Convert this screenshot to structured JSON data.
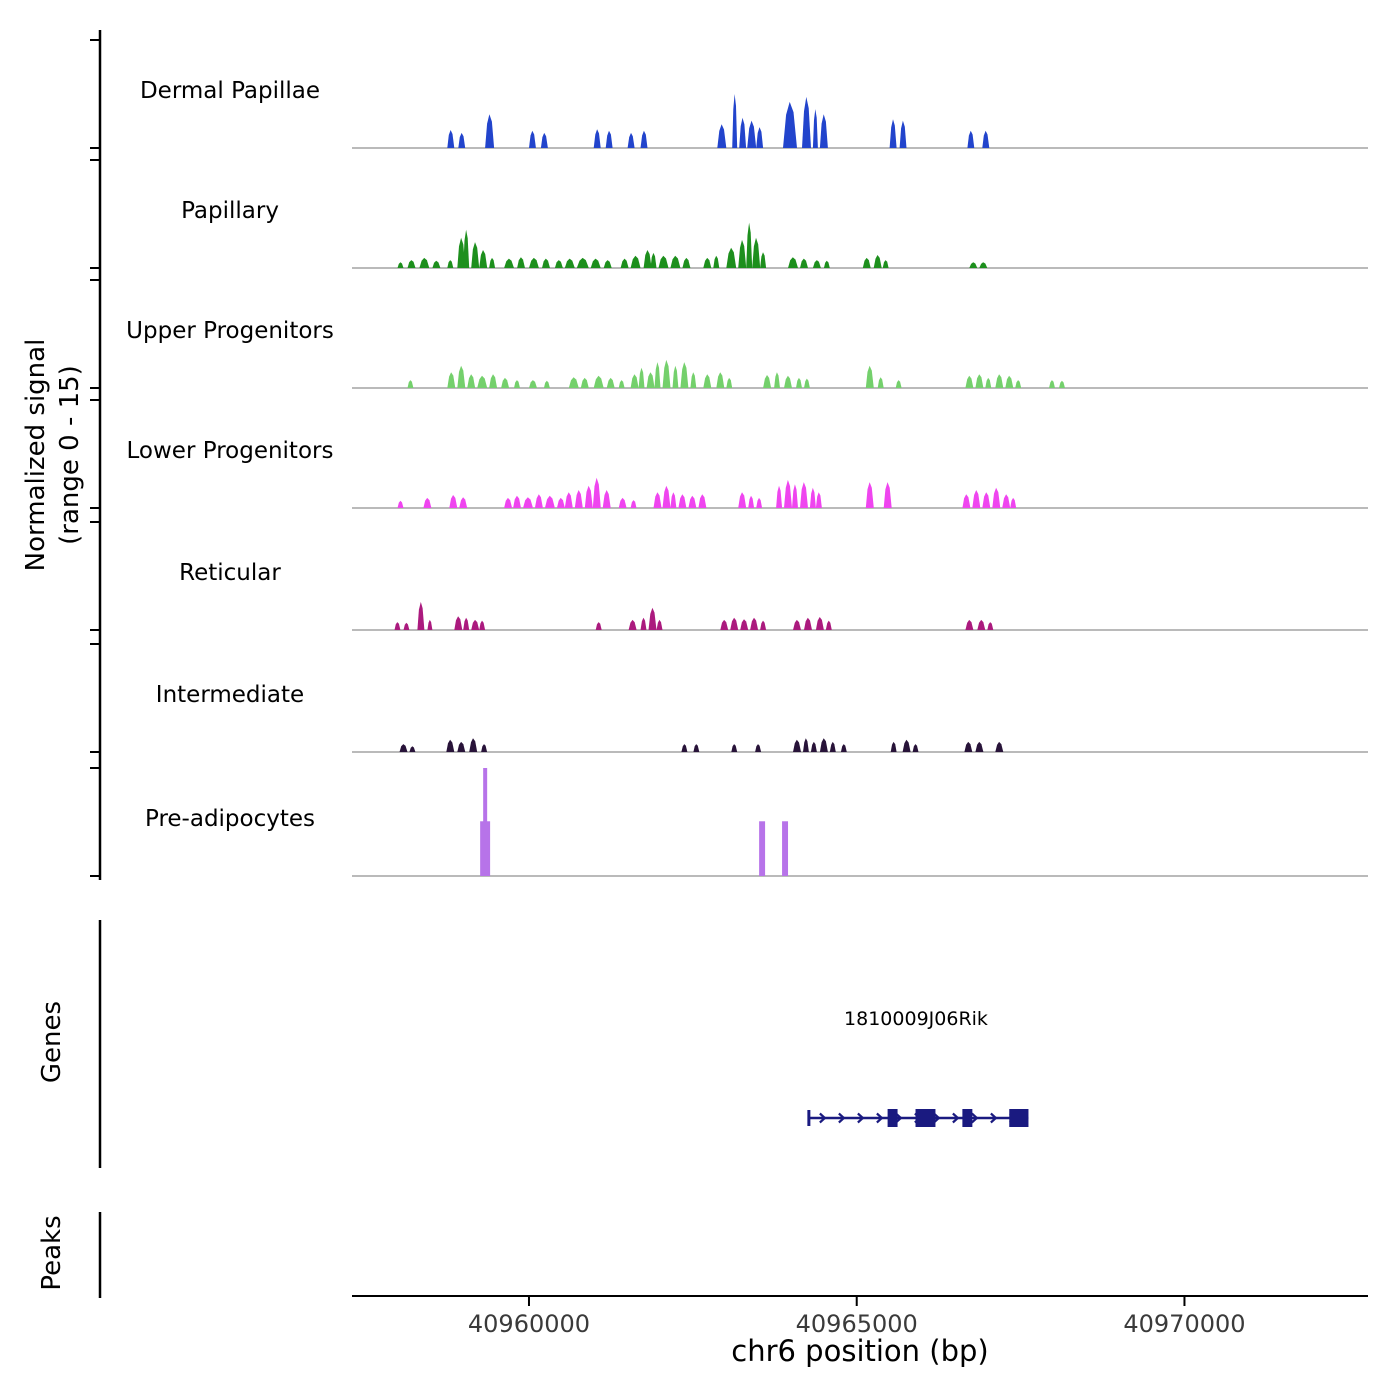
{
  "figure": {
    "background": "#ffffff",
    "y_axis_label_line1": "Normalized signal",
    "y_axis_label_line2": "(range 0 - 15)",
    "genes_section_label": "Genes",
    "peaks_section_label": "Peaks",
    "colors": {
      "baseline": "#909090",
      "axis": "#000000",
      "tick_label": "#3a3a3a",
      "gene": "#1a1a80"
    }
  },
  "chart_data": {
    "type": "area",
    "title": "",
    "xlabel": "chr6 position (bp)",
    "ylabel": "Normalized signal (range 0 - 15)",
    "ylim": [
      0,
      15
    ],
    "x_range_bp": [
      40957300,
      40972800
    ],
    "x_ticks": [
      40960000,
      40965000,
      40970000
    ],
    "tracks": [
      {
        "name": "Dermal Papillae",
        "color": "#2244cc",
        "shape": "mountain",
        "peaks": [
          [
            40958754,
            106,
            2.5
          ],
          [
            40958921,
            106,
            2.1
          ],
          [
            40959331,
            137,
            4.7
          ],
          [
            40960000,
            106,
            2.4
          ],
          [
            40960182,
            106,
            2.1
          ],
          [
            40960988,
            106,
            2.6
          ],
          [
            40961170,
            106,
            2.4
          ],
          [
            40961505,
            106,
            2.1
          ],
          [
            40961702,
            106,
            2.4
          ],
          [
            40962873,
            137,
            3.3
          ],
          [
            40963101,
            76,
            7.5
          ],
          [
            40963207,
            106,
            4.2
          ],
          [
            40963329,
            137,
            3.8
          ],
          [
            40963466,
            106,
            2.9
          ],
          [
            40963876,
            213,
            6.4
          ],
          [
            40964165,
            137,
            7.1
          ],
          [
            40964332,
            76,
            5.4
          ],
          [
            40964438,
            122,
            4.7
          ],
          [
            40965502,
            106,
            4.0
          ],
          [
            40965654,
            106,
            3.8
          ],
          [
            40966688,
            106,
            2.4
          ],
          [
            40966916,
            106,
            2.4
          ]
        ]
      },
      {
        "name": "Papillary",
        "color": "#1d8f1d",
        "shape": "mountain",
        "peaks": [
          [
            40957994,
            91,
            0.8
          ],
          [
            40958146,
            122,
            1.1
          ],
          [
            40958328,
            152,
            1.4
          ],
          [
            40958526,
            122,
            1.0
          ],
          [
            40958754,
            91,
            1.1
          ],
          [
            40958906,
            122,
            4.2
          ],
          [
            40958997,
            91,
            5.3
          ],
          [
            40959118,
            122,
            3.6
          ],
          [
            40959240,
            122,
            2.5
          ],
          [
            40959392,
            91,
            1.4
          ],
          [
            40959620,
            152,
            1.3
          ],
          [
            40959818,
            122,
            1.5
          ],
          [
            40960000,
            152,
            1.4
          ],
          [
            40960198,
            122,
            1.3
          ],
          [
            40960395,
            122,
            1.1
          ],
          [
            40960547,
            152,
            1.3
          ],
          [
            40960730,
            182,
            1.4
          ],
          [
            40960942,
            152,
            1.3
          ],
          [
            40961140,
            122,
            1.1
          ],
          [
            40961398,
            122,
            1.3
          ],
          [
            40961550,
            152,
            1.7
          ],
          [
            40961748,
            122,
            2.5
          ],
          [
            40961854,
            91,
            2.1
          ],
          [
            40961976,
            152,
            1.7
          ],
          [
            40962158,
            152,
            1.7
          ],
          [
            40962341,
            122,
            1.4
          ],
          [
            40962660,
            122,
            1.4
          ],
          [
            40962812,
            91,
            1.7
          ],
          [
            40963010,
            152,
            2.8
          ],
          [
            40963192,
            122,
            3.9
          ],
          [
            40963314,
            91,
            6.3
          ],
          [
            40963405,
            122,
            4.2
          ],
          [
            40963526,
            91,
            2.2
          ],
          [
            40963952,
            152,
            1.5
          ],
          [
            40964134,
            122,
            1.3
          ],
          [
            40964332,
            122,
            1.1
          ],
          [
            40964499,
            91,
            1.0
          ],
          [
            40965092,
            122,
            1.4
          ],
          [
            40965259,
            122,
            1.8
          ],
          [
            40965396,
            91,
            1.1
          ],
          [
            40966718,
            122,
            0.8
          ],
          [
            40966870,
            122,
            0.8
          ]
        ]
      },
      {
        "name": "Upper Progenitors",
        "color": "#74d06c",
        "shape": "mountain",
        "peaks": [
          [
            40958146,
            91,
            1.1
          ],
          [
            40958754,
            122,
            2.2
          ],
          [
            40958906,
            122,
            3.1
          ],
          [
            40959058,
            122,
            1.9
          ],
          [
            40959210,
            152,
            1.7
          ],
          [
            40959392,
            122,
            1.9
          ],
          [
            40959574,
            122,
            1.4
          ],
          [
            40959772,
            91,
            1.1
          ],
          [
            40960000,
            122,
            1.1
          ],
          [
            40960228,
            91,
            1.0
          ],
          [
            40960608,
            152,
            1.5
          ],
          [
            40960790,
            122,
            1.4
          ],
          [
            40960988,
            152,
            1.7
          ],
          [
            40961186,
            122,
            1.4
          ],
          [
            40961368,
            91,
            1.1
          ],
          [
            40961550,
            122,
            1.9
          ],
          [
            40961672,
            91,
            2.8
          ],
          [
            40961794,
            122,
            2.2
          ],
          [
            40961915,
            91,
            3.6
          ],
          [
            40962037,
            122,
            3.9
          ],
          [
            40962189,
            91,
            3.1
          ],
          [
            40962310,
            122,
            3.6
          ],
          [
            40962462,
            91,
            2.2
          ],
          [
            40962660,
            122,
            1.9
          ],
          [
            40962858,
            122,
            2.2
          ],
          [
            40963010,
            91,
            1.4
          ],
          [
            40963572,
            122,
            1.8
          ],
          [
            40963739,
            91,
            2.2
          ],
          [
            40963891,
            122,
            1.7
          ],
          [
            40964074,
            91,
            1.4
          ],
          [
            40964195,
            91,
            1.3
          ],
          [
            40965138,
            122,
            3.1
          ],
          [
            40965320,
            91,
            1.5
          ],
          [
            40965594,
            91,
            1.1
          ],
          [
            40966658,
            122,
            1.7
          ],
          [
            40966810,
            122,
            1.9
          ],
          [
            40966962,
            91,
            1.4
          ],
          [
            40967114,
            122,
            1.9
          ],
          [
            40967266,
            122,
            1.7
          ],
          [
            40967418,
            91,
            1.1
          ],
          [
            40967934,
            91,
            1.1
          ],
          [
            40968086,
            91,
            1.0
          ]
        ]
      },
      {
        "name": "Lower Progenitors",
        "color": "#ef45ef",
        "shape": "mountain",
        "peaks": [
          [
            40957994,
            91,
            1.0
          ],
          [
            40958389,
            122,
            1.4
          ],
          [
            40958784,
            122,
            1.8
          ],
          [
            40958936,
            122,
            1.5
          ],
          [
            40959620,
            122,
            1.4
          ],
          [
            40959757,
            122,
            1.7
          ],
          [
            40959909,
            152,
            1.5
          ],
          [
            40960091,
            122,
            1.9
          ],
          [
            40960243,
            152,
            1.7
          ],
          [
            40960426,
            122,
            1.4
          ],
          [
            40960547,
            122,
            2.2
          ],
          [
            40960699,
            122,
            2.5
          ],
          [
            40960851,
            122,
            3.1
          ],
          [
            40960973,
            122,
            4.2
          ],
          [
            40961125,
            122,
            2.5
          ],
          [
            40961368,
            122,
            1.4
          ],
          [
            40961550,
            91,
            1.1
          ],
          [
            40961900,
            122,
            2.2
          ],
          [
            40962037,
            122,
            3.1
          ],
          [
            40962158,
            91,
            2.2
          ],
          [
            40962280,
            122,
            1.9
          ],
          [
            40962432,
            122,
            1.7
          ],
          [
            40962584,
            122,
            1.9
          ],
          [
            40963192,
            122,
            2.2
          ],
          [
            40963344,
            91,
            1.7
          ],
          [
            40963466,
            91,
            1.4
          ],
          [
            40963770,
            91,
            3.1
          ],
          [
            40963891,
            122,
            3.9
          ],
          [
            40964013,
            91,
            3.3
          ],
          [
            40964134,
            122,
            3.6
          ],
          [
            40964286,
            91,
            2.8
          ],
          [
            40964377,
            91,
            2.2
          ],
          [
            40965138,
            122,
            3.6
          ],
          [
            40965411,
            122,
            3.6
          ],
          [
            40966612,
            122,
            1.9
          ],
          [
            40966764,
            122,
            2.5
          ],
          [
            40966916,
            122,
            2.2
          ],
          [
            40967068,
            122,
            2.8
          ],
          [
            40967220,
            122,
            1.9
          ],
          [
            40967342,
            91,
            1.4
          ]
        ]
      },
      {
        "name": "Reticular",
        "color": "#ab1a7e",
        "shape": "mountain",
        "peaks": [
          [
            40957948,
            91,
            1.1
          ],
          [
            40958085,
            91,
            1.0
          ],
          [
            40958298,
            106,
            3.9
          ],
          [
            40958450,
            76,
            1.4
          ],
          [
            40958860,
            122,
            1.9
          ],
          [
            40958997,
            91,
            1.7
          ],
          [
            40959118,
            122,
            1.4
          ],
          [
            40959240,
            91,
            1.3
          ],
          [
            40961018,
            91,
            1.1
          ],
          [
            40961520,
            122,
            1.4
          ],
          [
            40961702,
            91,
            1.7
          ],
          [
            40961824,
            122,
            3.1
          ],
          [
            40961946,
            91,
            1.4
          ],
          [
            40962918,
            122,
            1.4
          ],
          [
            40963070,
            122,
            1.7
          ],
          [
            40963222,
            122,
            1.5
          ],
          [
            40963374,
            122,
            1.7
          ],
          [
            40963526,
            91,
            1.3
          ],
          [
            40964028,
            122,
            1.4
          ],
          [
            40964195,
            122,
            1.7
          ],
          [
            40964377,
            122,
            1.8
          ],
          [
            40964529,
            91,
            1.3
          ],
          [
            40966658,
            122,
            1.4
          ],
          [
            40966840,
            122,
            1.4
          ],
          [
            40966992,
            91,
            1.1
          ]
        ]
      },
      {
        "name": "Intermediate",
        "color": "#281339",
        "shape": "mountain",
        "peaks": [
          [
            40958024,
            122,
            1.1
          ],
          [
            40958176,
            91,
            0.8
          ],
          [
            40958738,
            122,
            1.7
          ],
          [
            40958906,
            122,
            1.4
          ],
          [
            40959088,
            122,
            1.9
          ],
          [
            40959270,
            91,
            1.1
          ],
          [
            40962326,
            91,
            1.1
          ],
          [
            40962508,
            91,
            1.1
          ],
          [
            40963086,
            91,
            1.1
          ],
          [
            40963450,
            91,
            1.1
          ],
          [
            40964028,
            122,
            1.7
          ],
          [
            40964180,
            91,
            1.9
          ],
          [
            40964301,
            91,
            1.4
          ],
          [
            40964438,
            122,
            1.9
          ],
          [
            40964590,
            91,
            1.4
          ],
          [
            40964758,
            91,
            1.1
          ],
          [
            40965518,
            91,
            1.4
          ],
          [
            40965700,
            122,
            1.7
          ],
          [
            40965852,
            91,
            1.1
          ],
          [
            40966642,
            122,
            1.4
          ],
          [
            40966810,
            122,
            1.4
          ],
          [
            40967114,
            122,
            1.4
          ]
        ]
      },
      {
        "name": "Pre-adipocytes",
        "color": "#b773e9",
        "shape": "column",
        "peaks": [
          [
            40959255,
            152,
            7.6
          ],
          [
            40959301,
            61,
            15
          ],
          [
            40963511,
            91,
            7.6
          ],
          [
            40963861,
            91,
            7.6
          ]
        ]
      }
    ],
    "gene": {
      "name": "1810009J06Rik",
      "start": 40964270,
      "end": 40967620,
      "strand": "+",
      "color": "#1a1a80",
      "exons": [
        [
          40965471,
          40965623
        ],
        [
          40965897,
          40966201
        ],
        [
          40966612,
          40966764
        ],
        [
          40967327,
          40967620
        ]
      ]
    },
    "peaks_track": {
      "features": []
    }
  }
}
